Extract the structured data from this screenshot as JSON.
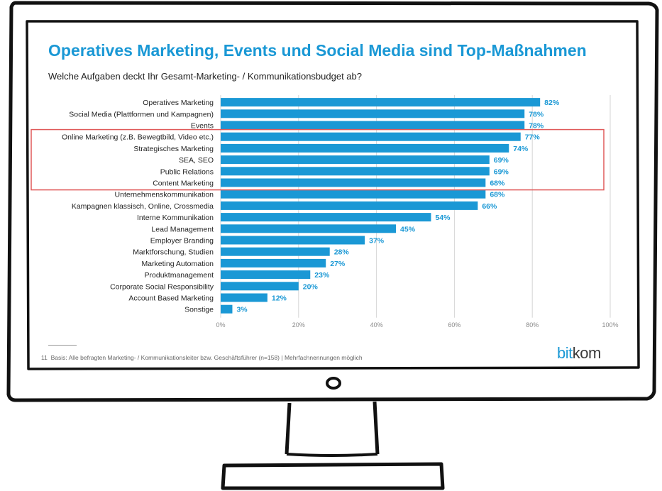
{
  "header": {
    "title": "Operatives Marketing, Events und Social Media sind Top-Maßnahmen",
    "subtitle": "Welche Aufgaben deckt Ihr Gesamt-Marketing- / Kommunikationsbudget ab?"
  },
  "footer": {
    "page_number": "11",
    "basis": "Basis: Alle befragten Marketing- / Kommunikationsleiter bzw. Geschäftsführer (n=158) | Mehrfachnennungen möglich",
    "logo_bit": "bit",
    "logo_kom": "kom"
  },
  "colors": {
    "bar": "#1a98d5",
    "title": "#1a98d5",
    "highlight_box": "#e05a5a",
    "grid": "#d6d6d6"
  },
  "chart_data": {
    "type": "bar",
    "orientation": "horizontal",
    "title": "Operatives Marketing, Events und Social Media sind Top-Maßnahmen",
    "subtitle": "Welche Aufgaben deckt Ihr Gesamt-Marketing- / Kommunikationsbudget ab?",
    "categories": [
      "Operatives Marketing",
      "Social Media (Plattformen und Kampagnen)",
      "Events",
      "Online Marketing (z.B. Bewegtbild, Video etc.)",
      "Strategisches Marketing",
      "SEA, SEO",
      "Public Relations",
      "Content Marketing",
      "Unternehmenskommunikation",
      "Kampagnen klassisch, Online, Crossmedia",
      "Interne Kommunikation",
      "Lead Management",
      "Employer Branding",
      "Marktforschung, Studien",
      "Marketing Automation",
      "Produktmanagement",
      "Corporate Social Responsibility",
      "Account Based Marketing",
      "Sonstige"
    ],
    "values": [
      82,
      78,
      78,
      77,
      74,
      69,
      69,
      68,
      68,
      66,
      54,
      45,
      37,
      28,
      27,
      23,
      20,
      12,
      3
    ],
    "value_labels": [
      "82%",
      "78%",
      "78%",
      "77%",
      "74%",
      "69%",
      "69%",
      "68%",
      "68%",
      "66%",
      "54%",
      "45%",
      "37%",
      "28%",
      "27%",
      "23%",
      "20%",
      "12%",
      "3%"
    ],
    "xlim": [
      0,
      100
    ],
    "xticks": [
      0,
      20,
      40,
      60,
      80,
      100
    ],
    "xtick_labels": [
      "0%",
      "20%",
      "40%",
      "60%",
      "80%",
      "100%"
    ],
    "grid": true,
    "highlighted_range": [
      3,
      7
    ],
    "xlabel": "",
    "ylabel": ""
  }
}
